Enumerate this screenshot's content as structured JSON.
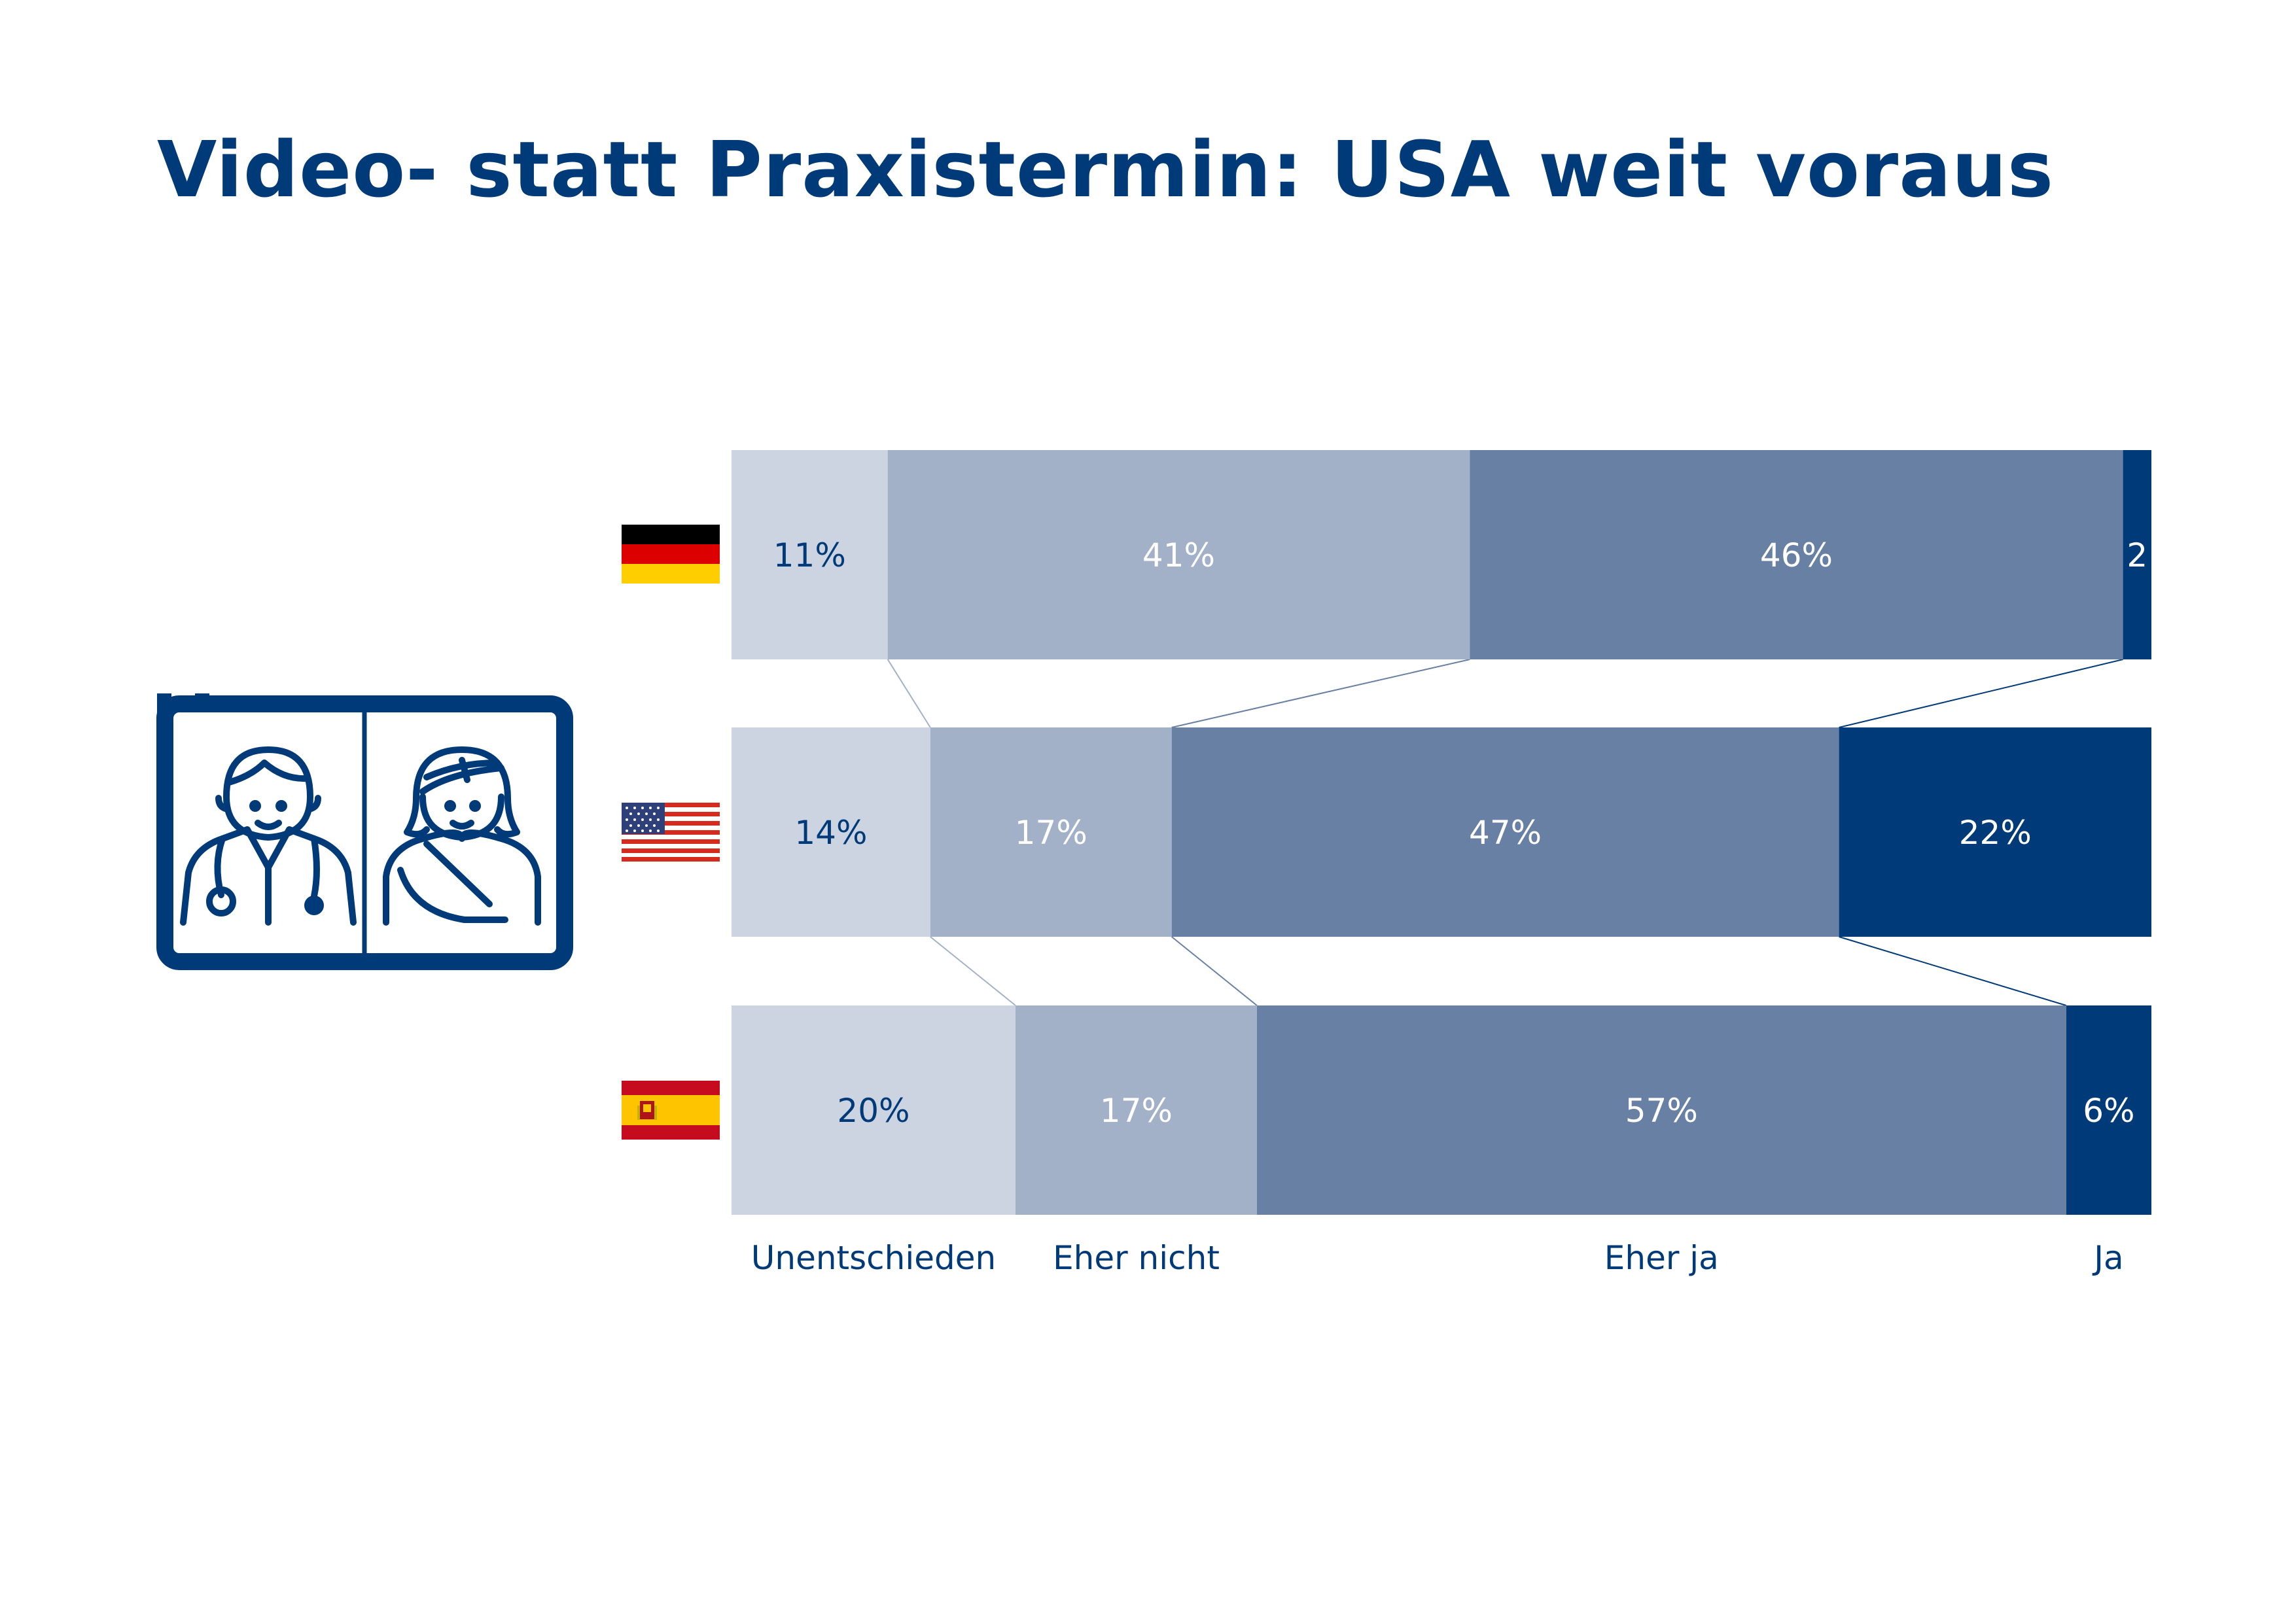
{
  "title": "Video- statt Praxistermin: USA weit voraus",
  "colors": {
    "text": "#003a78",
    "unentschieden": "#ccd4e1",
    "eher_nicht": "#a3b1c8",
    "eher_ja": "#6880a3",
    "ja": "#003a78"
  },
  "icon": "doctor-patient-video-call-icon",
  "chart_data": {
    "type": "bar",
    "stacked": true,
    "orientation": "horizontal",
    "rows": [
      {
        "country": "Deutschland",
        "flag": "germany-flag-icon",
        "values": [
          11,
          41,
          46,
          2
        ],
        "labels": [
          "11%",
          "41%",
          "46%",
          "2"
        ]
      },
      {
        "country": "USA",
        "flag": "usa-flag-icon",
        "values": [
          14,
          17,
          47,
          22
        ],
        "labels": [
          "14%",
          "17%",
          "47%",
          "22%"
        ]
      },
      {
        "country": "Spanien",
        "flag": "spain-flag-icon",
        "values": [
          20,
          17,
          57,
          6
        ],
        "labels": [
          "20%",
          "17%",
          "57%",
          "6%"
        ]
      }
    ],
    "series": [
      {
        "name": "Unentschieden",
        "colorKey": "unentschieden"
      },
      {
        "name": "Eher nicht",
        "colorKey": "eher_nicht"
      },
      {
        "name": "Eher ja",
        "colorKey": "eher_ja"
      },
      {
        "name": "Ja",
        "colorKey": "ja"
      }
    ],
    "xlim": [
      0,
      100
    ],
    "grid": false,
    "legend": "below"
  }
}
